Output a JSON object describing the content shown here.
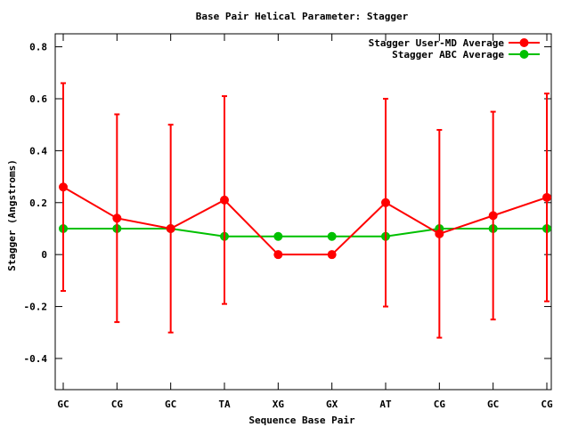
{
  "chart_data": {
    "type": "line",
    "title": "Base Pair Helical Parameter: Stagger",
    "xlabel": "Sequence Base Pair",
    "ylabel": "Stagger (Angstroms)",
    "categories": [
      "GC",
      "CG",
      "GC",
      "TA",
      "XG",
      "GX",
      "AT",
      "CG",
      "GC",
      "CG"
    ],
    "ylim": [
      -0.52,
      0.85
    ],
    "yticks": [
      -0.4,
      -0.2,
      0,
      0.2,
      0.4,
      0.6,
      0.8
    ],
    "ytick_labels": [
      "-0.4",
      "-0.2",
      "0",
      "0.2",
      "0.4",
      "0.6",
      "0.8"
    ],
    "grid": false,
    "legend_position": "top-right",
    "series": [
      {
        "name": "Stagger User-MD Average",
        "color": "#ff0000",
        "values": [
          0.26,
          0.14,
          0.1,
          0.21,
          0.0,
          0.0,
          0.2,
          0.08,
          0.15,
          0.22
        ],
        "error_low": [
          -0.14,
          -0.26,
          -0.3,
          -0.19,
          null,
          null,
          -0.2,
          -0.32,
          -0.25,
          -0.18
        ],
        "error_high": [
          0.66,
          0.54,
          0.5,
          0.61,
          null,
          null,
          0.6,
          0.48,
          0.55,
          0.62
        ]
      },
      {
        "name": "Stagger ABC Average",
        "color": "#00c000",
        "values": [
          0.1,
          0.1,
          0.1,
          0.07,
          0.07,
          0.07,
          0.07,
          0.1,
          0.1,
          0.1
        ]
      }
    ]
  }
}
